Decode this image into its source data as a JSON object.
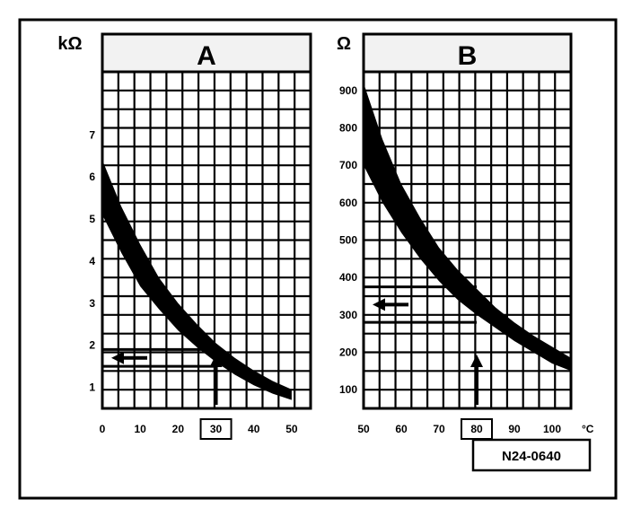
{
  "reference_code": "N24-0640",
  "chart_data": [
    {
      "type": "area",
      "panel": "A",
      "unit_label": "kΩ",
      "x_unit_label": "",
      "xlim": [
        0,
        55
      ],
      "ylim": [
        0.5,
        8.5
      ],
      "x_ticks": [
        0,
        10,
        20,
        30,
        40,
        50
      ],
      "y_ticks": [
        1,
        2,
        3,
        4,
        5,
        6,
        7
      ],
      "band": {
        "x": [
          0,
          5,
          10,
          15,
          20,
          25,
          30,
          35,
          40,
          45,
          50
        ],
        "upper": [
          6.4,
          5.3,
          4.4,
          3.6,
          3.0,
          2.5,
          2.05,
          1.7,
          1.4,
          1.15,
          0.95
        ],
        "lower": [
          5.1,
          4.2,
          3.4,
          2.85,
          2.35,
          1.95,
          1.6,
          1.3,
          1.05,
          0.85,
          0.7
        ]
      },
      "highlighted_x": 30,
      "reading_range": [
        1.5,
        1.9
      ],
      "grid": true,
      "color": "#000000"
    },
    {
      "type": "area",
      "panel": "B",
      "unit_label": "Ω",
      "x_unit_label": "°C",
      "xlim": [
        50,
        105
      ],
      "ylim": [
        50,
        950
      ],
      "x_ticks": [
        50,
        60,
        70,
        80,
        90,
        100
      ],
      "y_ticks": [
        100,
        200,
        300,
        400,
        500,
        600,
        700,
        800,
        900
      ],
      "band": {
        "x": [
          50,
          55,
          60,
          65,
          70,
          75,
          80,
          85,
          90,
          95,
          100,
          105
        ],
        "upper": [
          920,
          770,
          650,
          560,
          480,
          420,
          370,
          320,
          280,
          245,
          215,
          185
        ],
        "lower": [
          700,
          600,
          520,
          450,
          390,
          340,
          300,
          265,
          230,
          200,
          170,
          150
        ]
      },
      "highlighted_x": 80,
      "reading_range": [
        280,
        375
      ],
      "grid": true,
      "color": "#000000"
    }
  ]
}
